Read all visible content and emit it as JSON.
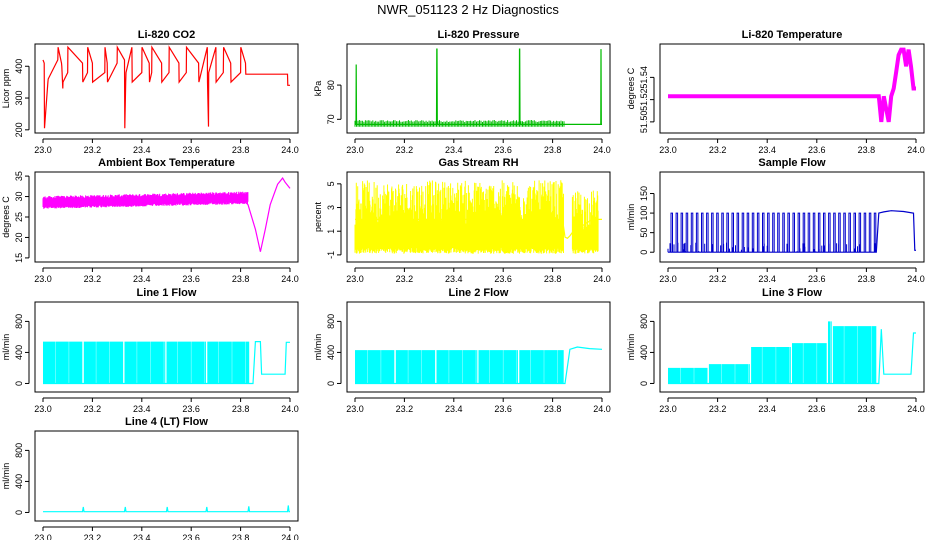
{
  "figure_title": "NWR_051123  2 Hz Diagnostics",
  "chart_data": [
    {
      "id": "co2",
      "type": "line",
      "title": "Li-820 CO2",
      "ylabel": "Licor ppm",
      "color": "#ff0000",
      "xlim": [
        23.0,
        24.0
      ],
      "ylim": [
        190,
        470
      ],
      "xticks": [
        23.0,
        23.2,
        23.4,
        23.6,
        23.8,
        24.0
      ],
      "xtick_labels": [
        "23.0",
        "23.2",
        "23.4",
        "23.6",
        "23.8",
        "24.0"
      ],
      "yticks": [
        200,
        300,
        400
      ],
      "ytick_labels": [
        "200",
        "300",
        "400"
      ],
      "series": [
        {
          "name": "Licor ppm",
          "x": [
            23.0,
            23.005,
            23.006,
            23.02,
            23.021,
            23.06,
            23.061,
            23.075,
            23.076,
            23.08,
            23.081,
            23.1,
            23.101,
            23.16,
            23.161,
            23.18,
            23.181,
            23.2,
            23.201,
            23.25,
            23.251,
            23.26,
            23.261,
            23.3,
            23.301,
            23.33,
            23.331,
            23.335,
            23.336,
            23.36,
            23.361,
            23.4,
            23.401,
            23.43,
            23.431,
            23.44,
            23.441,
            23.48,
            23.481,
            23.51,
            23.511,
            23.55,
            23.551,
            23.58,
            23.581,
            23.63,
            23.631,
            23.665,
            23.666,
            23.67,
            23.671,
            23.7,
            23.701,
            23.73,
            23.731,
            23.76,
            23.761,
            23.8,
            23.801,
            23.82,
            23.821,
            23.95,
            23.99,
            23.991,
            24.0
          ],
          "y": [
            420,
            410,
            205,
            350,
            360,
            420,
            460,
            410,
            400,
            330,
            350,
            380,
            460,
            410,
            350,
            380,
            460,
            410,
            350,
            380,
            460,
            410,
            350,
            410,
            460,
            420,
            205,
            350,
            380,
            460,
            350,
            380,
            460,
            410,
            350,
            380,
            460,
            410,
            350,
            380,
            460,
            410,
            350,
            380,
            460,
            410,
            350,
            460,
            350,
            210,
            380,
            460,
            350,
            380,
            460,
            410,
            350,
            380,
            460,
            410,
            375,
            375,
            375,
            340,
            340
          ]
        }
      ]
    },
    {
      "id": "pressure",
      "type": "line",
      "title": "Li-820 Pressure",
      "ylabel": "kPa",
      "color": "#00bb00",
      "xlim": [
        23.0,
        24.0
      ],
      "ylim": [
        66,
        92
      ],
      "xticks": [
        23.0,
        23.2,
        23.4,
        23.6,
        23.8,
        24.0
      ],
      "xtick_labels": [
        "23.0",
        "23.2",
        "23.4",
        "23.6",
        "23.8",
        "24.0"
      ],
      "yticks": [
        70,
        80
      ],
      "ytick_labels": [
        "70",
        "80"
      ],
      "series": [
        {
          "name": "kPa",
          "x": [
            23.0,
            23.004,
            23.005,
            23.006,
            23.33,
            23.331,
            23.332,
            23.333,
            23.665,
            23.666,
            23.667,
            23.668,
            23.85,
            23.995,
            23.996,
            23.997,
            24.0
          ],
          "y": [
            68.5,
            68.5,
            86,
            68.5,
            68.5,
            90.5,
            90.5,
            68.5,
            68.5,
            90.5,
            90.5,
            68.5,
            68.5,
            68.5,
            90.5,
            68.5,
            68.5
          ]
        }
      ]
    },
    {
      "id": "temperature",
      "type": "line",
      "title": "Li-820 Temperature",
      "ylabel": "degrees C",
      "color": "#ff00ff",
      "xlim": [
        23.0,
        24.0
      ],
      "ylim": [
        51.49,
        51.57
      ],
      "xticks": [
        23.0,
        23.2,
        23.4,
        23.6,
        23.8,
        24.0
      ],
      "xtick_labels": [
        "23.0",
        "23.2",
        "23.4",
        "23.6",
        "23.8",
        "24.0"
      ],
      "yticks": [
        51.5,
        51.52,
        51.54
      ],
      "ytick_labels": [
        "51.50",
        "51.52",
        "51.54"
      ],
      "series": [
        {
          "name": "degrees C",
          "x": [
            23.0,
            23.85,
            23.86,
            23.87,
            23.89,
            23.9,
            23.91,
            23.92,
            23.93,
            23.94,
            23.95,
            23.96,
            23.97,
            23.98,
            23.99,
            24.0
          ],
          "y": [
            51.523,
            51.523,
            51.5,
            51.523,
            51.5,
            51.523,
            51.53,
            51.545,
            51.56,
            51.565,
            51.565,
            51.55,
            51.565,
            51.55,
            51.53,
            51.53
          ]
        }
      ]
    },
    {
      "id": "box-temperature",
      "type": "line",
      "title": "Ambient Box Temperature",
      "ylabel": "degrees C",
      "color": "#ff00ff",
      "xlim": [
        23.0,
        24.0
      ],
      "ylim": [
        14,
        36
      ],
      "xticks": [
        23.0,
        23.2,
        23.4,
        23.6,
        23.8,
        24.0
      ],
      "xtick_labels": [
        "23.0",
        "23.2",
        "23.4",
        "23.6",
        "23.8",
        "24.0"
      ],
      "yticks": [
        15,
        20,
        25,
        30,
        35
      ],
      "ytick_labels": [
        "15",
        "20",
        "25",
        "30",
        "35"
      ],
      "series": [
        {
          "name": "degrees C",
          "x": [
            23.0,
            23.1,
            23.2,
            23.3,
            23.4,
            23.5,
            23.6,
            23.7,
            23.75,
            23.8,
            23.83,
            23.86,
            23.88,
            23.9,
            23.92,
            23.95,
            23.97,
            23.98,
            24.0
          ],
          "y": [
            28.5,
            28.7,
            28.8,
            29.0,
            29.0,
            29.1,
            29.2,
            29.5,
            29.6,
            29.8,
            28.0,
            22.0,
            16.5,
            22.0,
            28.0,
            33.0,
            34.5,
            33.5,
            32.0
          ]
        }
      ]
    },
    {
      "id": "rh",
      "type": "line",
      "title": "Gas Stream RH",
      "ylabel": "percent",
      "color": "#ffff00",
      "xlim": [
        23.0,
        24.0
      ],
      "ylim": [
        -1.6,
        6.0
      ],
      "xticks": [
        23.0,
        23.2,
        23.4,
        23.6,
        23.8,
        24.0
      ],
      "xtick_labels": [
        "23.0",
        "23.2",
        "23.4",
        "23.6",
        "23.8",
        "24.0"
      ],
      "yticks": [
        -1,
        1,
        3,
        5
      ],
      "ytick_labels": [
        "-1",
        "1",
        "3",
        "5"
      ],
      "series": [
        {
          "name": "percent",
          "x": [
            23.0,
            23.84,
            23.85,
            23.86,
            23.87,
            23.88,
            23.96,
            23.97,
            24.0
          ],
          "y": [
            2.0,
            2.0,
            0.5,
            0.4,
            0.6,
            0.9,
            2.0,
            2.0,
            2.0
          ]
        }
      ]
    },
    {
      "id": "sample-flow",
      "type": "line",
      "title": "Sample Flow",
      "ylabel": "ml/min",
      "color": "#0000cc",
      "xlim": [
        23.0,
        24.0
      ],
      "ylim": [
        -25,
        205
      ],
      "xticks": [
        23.0,
        23.2,
        23.4,
        23.6,
        23.8,
        24.0
      ],
      "xtick_labels": [
        "23.0",
        "23.2",
        "23.4",
        "23.6",
        "23.8",
        "24.0"
      ],
      "yticks": [
        0,
        50,
        100,
        150
      ],
      "ytick_labels": [
        "0",
        "50",
        "100",
        "150"
      ],
      "series": [
        {
          "name": "ml/min",
          "x": [
            23.0,
            23.84,
            23.85,
            23.87,
            23.9,
            23.95,
            23.99,
            23.995,
            24.0
          ],
          "y": [
            0,
            0,
            100,
            103,
            106,
            104,
            100,
            5,
            5
          ]
        }
      ]
    },
    {
      "id": "line1-flow",
      "type": "line",
      "title": "Line 1 Flow",
      "ylabel": "ml/min",
      "color": "#00ffff",
      "xlim": [
        23.0,
        24.0
      ],
      "ylim": [
        -110,
        1050
      ],
      "xticks": [
        23.0,
        23.2,
        23.4,
        23.6,
        23.8,
        24.0
      ],
      "xtick_labels": [
        "23.0",
        "23.2",
        "23.4",
        "23.6",
        "23.8",
        "24.0"
      ],
      "yticks": [
        0,
        400,
        800
      ],
      "ytick_labels": [
        "0",
        "400",
        "800"
      ],
      "series": [
        {
          "name": "ml/min",
          "x": [
            23.0,
            23.85,
            23.86,
            23.88,
            23.885,
            23.98,
            23.985,
            24.0
          ],
          "y": [
            0,
            0,
            540,
            540,
            120,
            120,
            530,
            530
          ]
        }
      ]
    },
    {
      "id": "line2-flow",
      "type": "line",
      "title": "Line 2 Flow",
      "ylabel": "ml/min",
      "color": "#00ffff",
      "xlim": [
        23.0,
        24.0
      ],
      "ylim": [
        -110,
        1050
      ],
      "xticks": [
        23.0,
        23.2,
        23.4,
        23.6,
        23.8,
        24.0
      ],
      "xtick_labels": [
        "23.0",
        "23.2",
        "23.4",
        "23.6",
        "23.8",
        "24.0"
      ],
      "yticks": [
        0,
        400,
        800
      ],
      "ytick_labels": [
        "0",
        "400",
        "800"
      ],
      "series": [
        {
          "name": "ml/min",
          "x": [
            23.0,
            23.85,
            23.87,
            23.9,
            23.95,
            24.0
          ],
          "y": [
            0,
            0,
            440,
            470,
            450,
            440
          ]
        }
      ]
    },
    {
      "id": "line3-flow",
      "type": "line",
      "title": "Line 3 Flow",
      "ylabel": "ml/min",
      "color": "#00ffff",
      "xlim": [
        23.0,
        24.0
      ],
      "ylim": [
        -110,
        1050
      ],
      "xticks": [
        23.0,
        23.2,
        23.4,
        23.6,
        23.8,
        24.0
      ],
      "xtick_labels": [
        "23.0",
        "23.2",
        "23.4",
        "23.6",
        "23.8",
        "24.0"
      ],
      "yticks": [
        0,
        400,
        800
      ],
      "ytick_labels": [
        "0",
        "400",
        "800"
      ],
      "series": [
        {
          "name": "ml/min",
          "x": [
            23.0,
            23.85,
            23.86,
            23.87,
            23.88,
            23.98,
            23.99,
            24.0
          ],
          "y": [
            0,
            0,
            700,
            120,
            120,
            120,
            650,
            650
          ]
        }
      ]
    },
    {
      "id": "line4-flow",
      "type": "line",
      "title": "Line 4 (LT) Flow",
      "ylabel": "ml/min",
      "color": "#00ffff",
      "xlim": [
        23.0,
        24.0
      ],
      "ylim": [
        -110,
        1050
      ],
      "xticks": [
        23.0,
        23.2,
        23.4,
        23.6,
        23.8,
        24.0
      ],
      "xtick_labels": [
        "23.0",
        "23.2",
        "23.4",
        "23.6",
        "23.8",
        "24.0"
      ],
      "yticks": [
        0,
        400,
        800
      ],
      "ytick_labels": [
        "0",
        "400",
        "800"
      ],
      "series": [
        {
          "name": "ml/min",
          "x": [
            23.0,
            23.16,
            23.163,
            23.166,
            23.33,
            23.333,
            23.336,
            23.5,
            23.503,
            23.506,
            23.66,
            23.663,
            23.666,
            23.83,
            23.833,
            23.836,
            23.99,
            23.993,
            23.996,
            24.0
          ],
          "y": [
            10,
            10,
            70,
            10,
            10,
            70,
            10,
            10,
            70,
            10,
            10,
            70,
            10,
            10,
            80,
            10,
            10,
            90,
            10,
            10
          ]
        }
      ]
    }
  ]
}
